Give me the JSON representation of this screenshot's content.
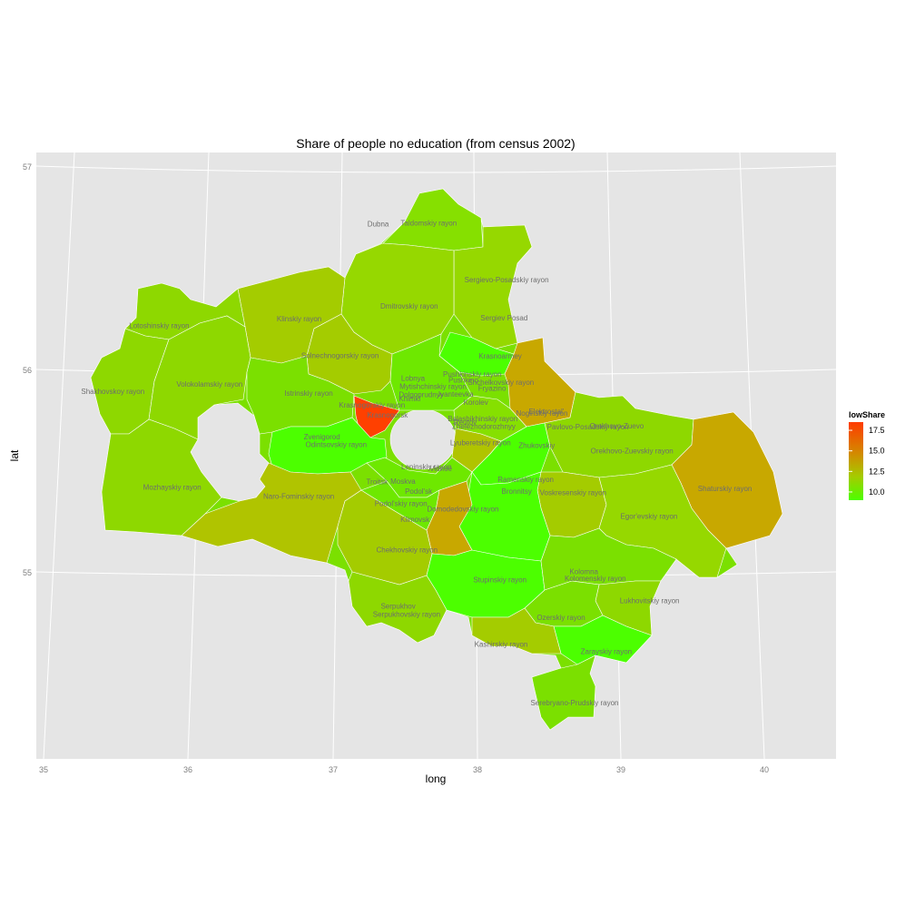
{
  "chart_data": {
    "type": "choropleth-map",
    "title": "Share of people no education (from census 2002)",
    "xlabel": "long",
    "ylabel": "lat",
    "x_ticks": [
      35,
      36,
      37,
      38,
      39,
      40
    ],
    "y_ticks": [
      55,
      56,
      57
    ],
    "xlim": [
      34.95,
      40.5
    ],
    "ylim": [
      54.1,
      57.1
    ],
    "grid": true,
    "legend": {
      "title": "lowShare",
      "position": "right",
      "ticks": [
        "17.5",
        "15.0",
        "12.5",
        "10.0"
      ],
      "range": [
        9,
        18.5
      ],
      "colors": {
        "low": "#4cff00",
        "high": "#ff3b00"
      }
    },
    "regions": [
      {
        "name": "Dubna",
        "lon": 37.22,
        "lat": 56.71,
        "value": 10.5
      },
      {
        "name": "Taldomskiy rayon",
        "lon": 37.57,
        "lat": 56.71,
        "value": 10.5
      },
      {
        "name": "Sergievo-Posadskiy rayon",
        "lon": 38.12,
        "lat": 56.43,
        "value": 11.0
      },
      {
        "name": "Lotoshinskiy rayon",
        "lon": 35.72,
        "lat": 56.26,
        "value": 10.5
      },
      {
        "name": "Klinskiy rayon",
        "lon": 36.69,
        "lat": 56.25,
        "value": 12.0
      },
      {
        "name": "Dmitrovskiy rayon",
        "lon": 37.45,
        "lat": 56.3,
        "value": 11.0
      },
      {
        "name": "Sergiev Posad",
        "lon": 38.11,
        "lat": 56.24,
        "value": 11.0
      },
      {
        "name": "Solnechnogorskiy rayon",
        "lon": 36.98,
        "lat": 56.06,
        "value": 12.0
      },
      {
        "name": "Krasnoarmey",
        "lon": 38.09,
        "lat": 56.05,
        "value": 9.3
      },
      {
        "name": "Shakhovskoy rayon",
        "lon": 35.41,
        "lat": 55.95,
        "value": 10.5
      },
      {
        "name": "Volokolamskiy rayon",
        "lon": 36.08,
        "lat": 55.95,
        "value": 10.5
      },
      {
        "name": "Lobnya",
        "lon": 37.49,
        "lat": 55.94,
        "value": 10.0
      },
      {
        "name": "Pushkinskiy rayon",
        "lon": 37.9,
        "lat": 55.96,
        "value": 10.0
      },
      {
        "name": "Pushkino",
        "lon": 37.84,
        "lat": 55.93,
        "value": 10.0
      },
      {
        "name": "Shchelkovskiy rayon",
        "lon": 38.1,
        "lat": 55.92,
        "value": 10.0
      },
      {
        "name": "Mytishchinskiy rayon",
        "lon": 37.63,
        "lat": 55.9,
        "value": 10.0
      },
      {
        "name": "Fryazino",
        "lon": 38.04,
        "lat": 55.89,
        "value": 10.0
      },
      {
        "name": "Dolgoprudnyy",
        "lon": 37.55,
        "lat": 55.86,
        "value": 10.0
      },
      {
        "name": "Khimki",
        "lon": 37.47,
        "lat": 55.84,
        "value": 10.0
      },
      {
        "name": "Ivanteevka",
        "lon": 37.79,
        "lat": 55.86,
        "value": 10.0
      },
      {
        "name": "Istrinskiy rayon",
        "lon": 36.77,
        "lat": 55.88,
        "value": 10.5
      },
      {
        "name": "Krasnogorskiy rayon",
        "lon": 37.21,
        "lat": 55.81,
        "value": 10.0
      },
      {
        "name": "Krasnogorsk",
        "lon": 37.32,
        "lat": 55.76,
        "value": 18.0
      },
      {
        "name": "Korolev",
        "lon": 37.93,
        "lat": 55.82,
        "value": 9.5
      },
      {
        "name": "Elektrostal'",
        "lon": 38.42,
        "lat": 55.78,
        "value": 10.0
      },
      {
        "name": "Noginskiy rayon",
        "lon": 38.39,
        "lat": 55.77,
        "value": 14.5
      },
      {
        "name": "Orekhovo-Zuevo",
        "lon": 38.91,
        "lat": 55.72,
        "value": 11.0
      },
      {
        "name": "Balashikhinskiy rayon",
        "lon": 37.98,
        "lat": 55.74,
        "value": 10.5
      },
      {
        "name": "Pavlovo-Posadskiy rayon",
        "lon": 38.71,
        "lat": 55.71,
        "value": 11.0
      },
      {
        "name": "Reutov",
        "lon": 37.86,
        "lat": 55.72,
        "value": 10.0
      },
      {
        "name": "Zheleznodorozhnyy",
        "lon": 37.99,
        "lat": 55.7,
        "value": 10.5
      },
      {
        "name": "Zvenigorod",
        "lon": 36.87,
        "lat": 55.66,
        "value": 10.0
      },
      {
        "name": "Odintsovskiy rayon",
        "lon": 36.97,
        "lat": 55.62,
        "value": 9.5
      },
      {
        "name": "Lyuberetskiy rayon",
        "lon": 37.97,
        "lat": 55.62,
        "value": 12.5
      },
      {
        "name": "Zhukovskiy",
        "lon": 38.36,
        "lat": 55.61,
        "value": 9.5
      },
      {
        "name": "Orekhovo-Zuevskiy rayon",
        "lon": 39.02,
        "lat": 55.6,
        "value": 10.5
      },
      {
        "name": "Shaturskiy rayon",
        "lon": 39.67,
        "lat": 55.44,
        "value": 15.0
      },
      {
        "name": "Mozhayskiy rayon",
        "lon": 35.84,
        "lat": 55.45,
        "value": 10.5
      },
      {
        "name": "Leninskiy rayon",
        "lon": 37.6,
        "lat": 55.5,
        "value": 10.0
      },
      {
        "name": "Vidnoe",
        "lon": 37.7,
        "lat": 55.49,
        "value": 10.0
      },
      {
        "name": "Troitsk",
        "lon": 37.26,
        "lat": 55.43,
        "value": 10.0
      },
      {
        "name": "Moskva",
        "lon": 37.44,
        "lat": 55.43,
        "value": 10.0
      },
      {
        "name": "Podol'sk",
        "lon": 37.55,
        "lat": 55.38,
        "value": 10.0
      },
      {
        "name": "Ramenskiy rayon",
        "lon": 38.29,
        "lat": 55.44,
        "value": 10.0
      },
      {
        "name": "Bronnitsy",
        "lon": 38.23,
        "lat": 55.38,
        "value": 10.0
      },
      {
        "name": "Voskresenskiy rayon",
        "lon": 38.62,
        "lat": 55.38,
        "value": 12.0
      },
      {
        "name": "Naro-Fominskiy rayon",
        "lon": 36.72,
        "lat": 55.37,
        "value": 11.5
      },
      {
        "name": "Podol'skiy rayon",
        "lon": 37.43,
        "lat": 55.32,
        "value": 10.0
      },
      {
        "name": "Domodedovskiy rayon",
        "lon": 37.86,
        "lat": 55.29,
        "value": 14.5
      },
      {
        "name": "Egor'evskiy rayon",
        "lon": 39.15,
        "lat": 55.28,
        "value": 11.0
      },
      {
        "name": "Klimovsk",
        "lon": 37.53,
        "lat": 55.24,
        "value": 10.0
      },
      {
        "name": "Chekhovskiy rayon",
        "lon": 37.48,
        "lat": 55.09,
        "value": 12.0
      },
      {
        "name": "Kolomna",
        "lon": 38.71,
        "lat": 54.99,
        "value": 10.0
      },
      {
        "name": "Kolomenskiy rayon",
        "lon": 38.79,
        "lat": 54.96,
        "value": 10.0
      },
      {
        "name": "Stupinskiy rayon",
        "lon": 38.13,
        "lat": 54.94,
        "value": 9.5
      },
      {
        "name": "Lukhovitskiy rayon",
        "lon": 39.17,
        "lat": 54.86,
        "value": 10.5
      },
      {
        "name": "Serpukhov",
        "lon": 37.43,
        "lat": 54.81,
        "value": 10.0
      },
      {
        "name": "Serpukhovskiy rayon",
        "lon": 37.49,
        "lat": 54.77,
        "value": 10.5
      },
      {
        "name": "Ozerskiy rayon",
        "lon": 38.56,
        "lat": 54.76,
        "value": 10.5
      },
      {
        "name": "Kashirskiy rayon",
        "lon": 38.15,
        "lat": 54.62,
        "value": 11.5
      },
      {
        "name": "Zarayskiy rayon",
        "lon": 38.88,
        "lat": 54.6,
        "value": 9.3
      },
      {
        "name": "Serebryano-Prudskiy rayon",
        "lon": 38.67,
        "lat": 54.34,
        "value": 10.0
      }
    ]
  }
}
